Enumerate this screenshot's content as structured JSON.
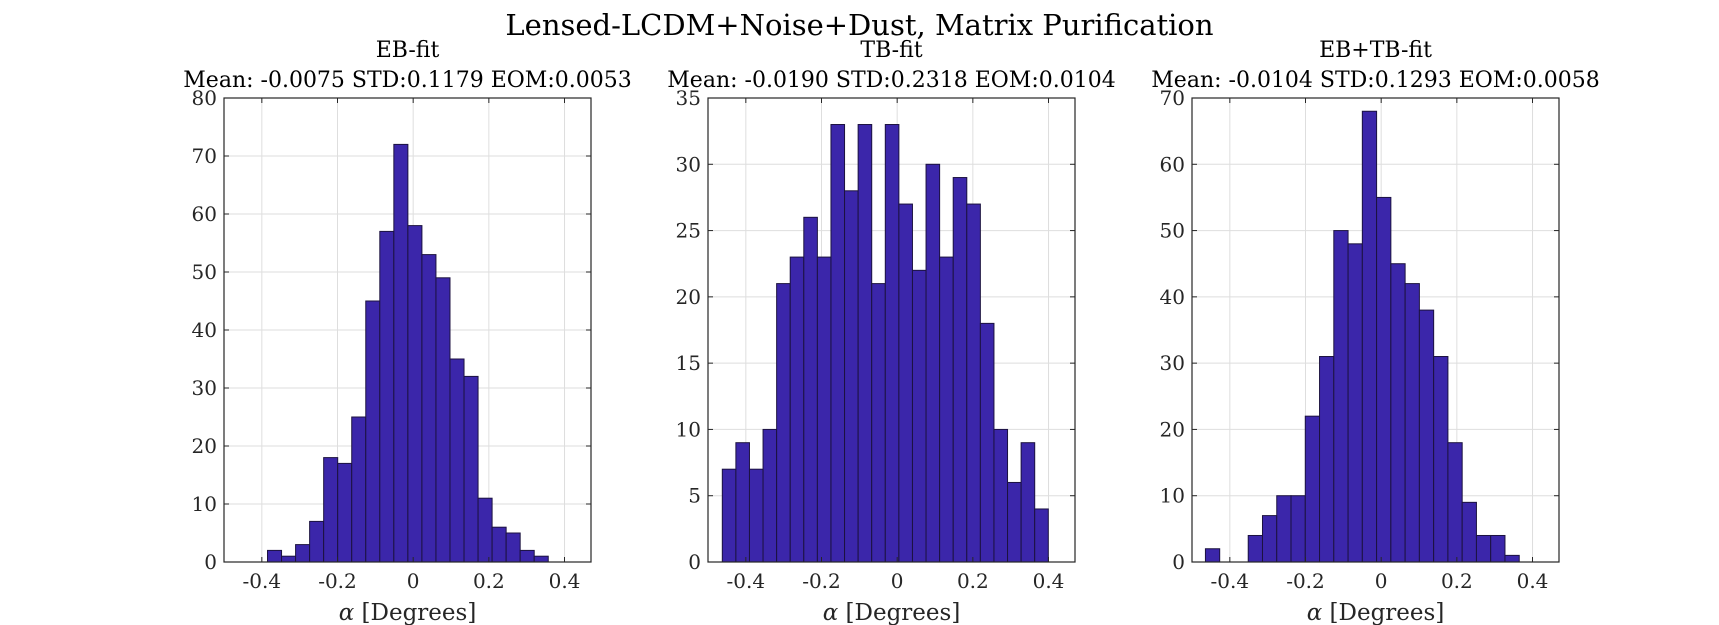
{
  "figure": {
    "suptitle": "Lensed-LCDM+Noise+Dust, Matrix Purification"
  },
  "chart_data": [
    {
      "type": "bar",
      "title": "EB-fit",
      "subtitle": "Mean: -0.0075 STD:0.1179 EOM:0.0053",
      "xlabel_symbol": "α",
      "xlabel": "[Degrees]",
      "ylabel": "",
      "xlim": [
        -0.5,
        0.47
      ],
      "ylim": [
        0,
        80
      ],
      "xticks": [
        -0.4,
        -0.2,
        0,
        0.2,
        0.4
      ],
      "xtick_labels": [
        "-0.4",
        "-0.2",
        "0",
        "0.2",
        "0.4"
      ],
      "yticks": [
        0,
        10,
        20,
        30,
        40,
        50,
        60,
        70,
        80
      ],
      "grid": true,
      "bin_start": -0.385,
      "bin_width": 0.0371,
      "values": [
        2,
        1,
        3,
        7,
        18,
        17,
        25,
        45,
        57,
        72,
        58,
        53,
        49,
        35,
        32,
        11,
        6,
        5,
        2,
        1
      ]
    },
    {
      "type": "bar",
      "title": "TB-fit",
      "subtitle": "Mean: -0.0190 STD:0.2318 EOM:0.0104",
      "xlabel_symbol": "α",
      "xlabel": "[Degrees]",
      "ylabel": "",
      "xlim": [
        -0.5,
        0.47
      ],
      "ylim": [
        0,
        35
      ],
      "xticks": [
        -0.4,
        -0.2,
        0,
        0.2,
        0.4
      ],
      "xtick_labels": [
        "-0.4",
        "-0.2",
        "0",
        "0.2",
        "0.4"
      ],
      "yticks": [
        0,
        5,
        10,
        15,
        20,
        25,
        30,
        35
      ],
      "grid": true,
      "bin_start": -0.4622,
      "bin_width": 0.0359,
      "values": [
        7,
        9,
        7,
        10,
        21,
        23,
        26,
        23,
        33,
        28,
        33,
        21,
        33,
        27,
        22,
        30,
        23,
        29,
        27,
        18,
        10,
        6,
        9,
        4
      ]
    },
    {
      "type": "bar",
      "title": "EB+TB-fit",
      "subtitle": "Mean: -0.0104 STD:0.1293 EOM:0.0058",
      "xlabel_symbol": "α",
      "xlabel": "[Degrees]",
      "ylabel": "",
      "xlim": [
        -0.5,
        0.47
      ],
      "ylim": [
        0,
        70
      ],
      "xticks": [
        -0.4,
        -0.2,
        0,
        0.2,
        0.4
      ],
      "xtick_labels": [
        "-0.4",
        "-0.2",
        "0",
        "0.2",
        "0.4"
      ],
      "yticks": [
        0,
        10,
        20,
        30,
        40,
        50,
        60,
        70
      ],
      "grid": true,
      "bin_start": -0.4645,
      "bin_width": 0.0377,
      "values": [
        2,
        0,
        0,
        4,
        7,
        10,
        10,
        22,
        31,
        50,
        48,
        68,
        55,
        45,
        42,
        38,
        31,
        18,
        9,
        4,
        4,
        1,
        0
      ]
    }
  ]
}
